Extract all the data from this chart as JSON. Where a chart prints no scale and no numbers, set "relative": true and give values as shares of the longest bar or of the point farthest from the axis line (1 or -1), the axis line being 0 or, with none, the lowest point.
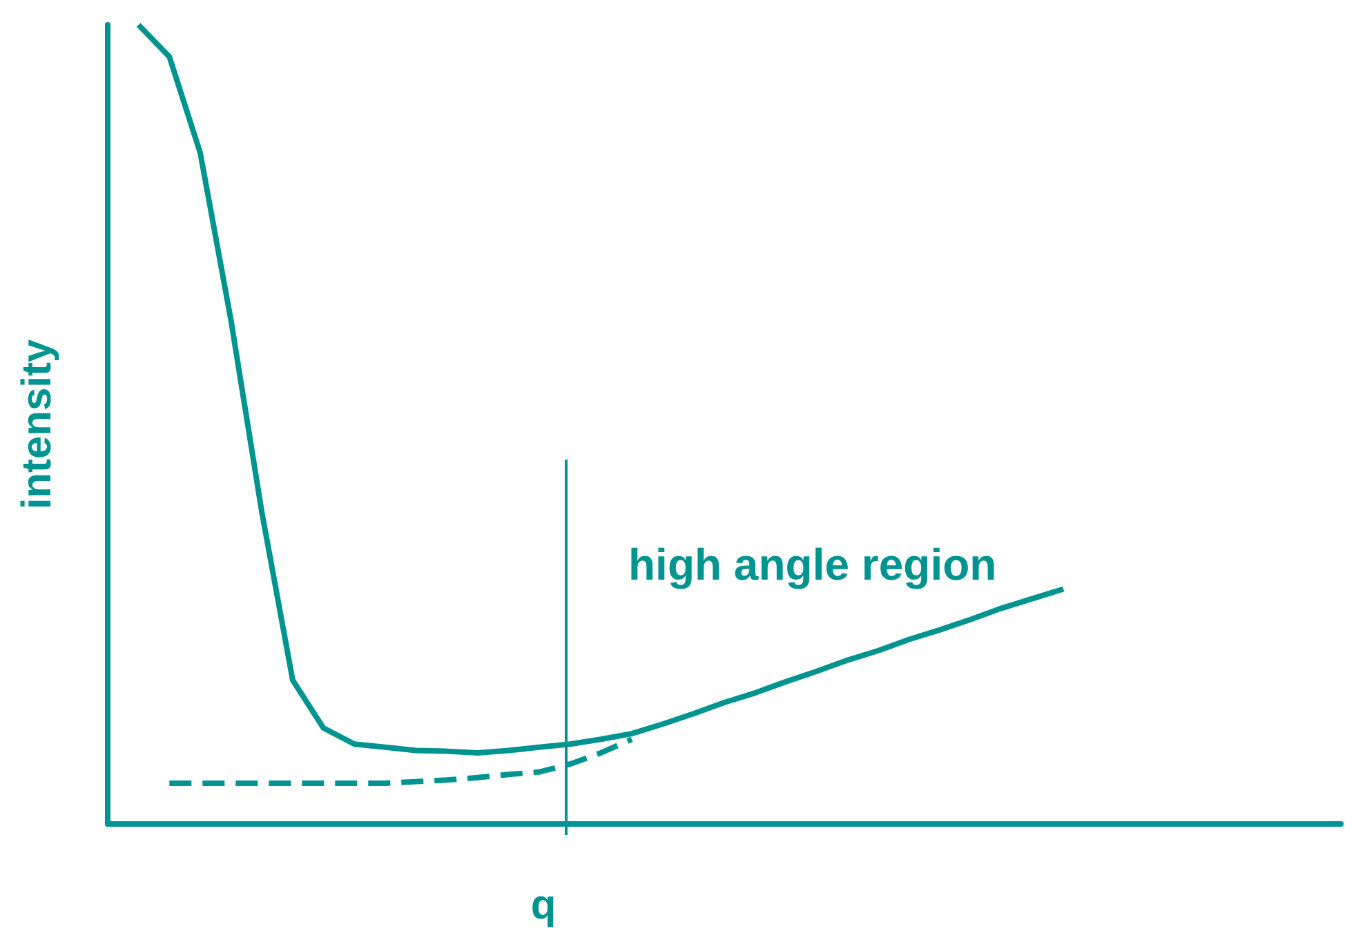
{
  "chart_data": {
    "type": "line",
    "relative": true,
    "xlabel": "q",
    "ylabel": "intensity",
    "annotations": [
      "high angle region"
    ],
    "marker": "none",
    "grid": false,
    "categories": [
      null,
      null,
      null,
      null,
      null,
      null,
      null,
      null,
      null,
      null,
      null,
      null,
      null,
      null,
      null,
      null,
      null,
      null,
      null,
      null,
      null,
      null,
      null,
      null,
      null,
      null,
      null,
      null,
      null,
      null,
      null,
      null,
      null,
      null,
      null,
      null,
      null,
      null,
      null,
      null,
      null
    ],
    "series": [
      {
        "color": "#009490",
        "line_style": "solid",
        "values": [
          null,
          1.0,
          0.96,
          0.84,
          0.63,
          0.39,
          0.18,
          0.12,
          0.1,
          0.096,
          0.092,
          0.091,
          0.089,
          0.092,
          0.096,
          0.1,
          0.106,
          0.113,
          0.125,
          0.138,
          0.152,
          0.164,
          0.178,
          0.191,
          0.205,
          0.217,
          0.231,
          0.243,
          0.256,
          0.27,
          0.282,
          0.294,
          null,
          null,
          null,
          null,
          null,
          null,
          null,
          null,
          null
        ]
      },
      {
        "color": "#009490",
        "line_style": "dashed",
        "values": [
          null,
          null,
          0.051,
          0.051,
          0.051,
          0.051,
          0.051,
          0.051,
          0.051,
          0.051,
          0.053,
          0.055,
          0.058,
          0.062,
          0.065,
          0.075,
          0.089,
          0.106,
          null,
          null,
          null,
          null,
          null,
          null,
          null,
          null,
          null,
          null,
          null,
          null,
          null,
          null,
          null,
          null,
          null,
          null,
          null,
          null,
          null,
          null,
          null
        ]
      }
    ]
  }
}
